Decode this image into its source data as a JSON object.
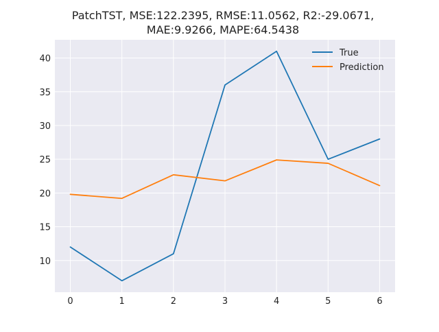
{
  "chart_data": {
    "type": "line",
    "title_lines": [
      "PatchTST, MSE:122.2395, RMSE:11.0562, R2:-29.0671,",
      "MAE:9.9266, MAPE:64.5438"
    ],
    "x": [
      0,
      1,
      2,
      3,
      4,
      5,
      6
    ],
    "xlim": [
      -0.3,
      6.3
    ],
    "ylim": [
      5.3,
      42.7
    ],
    "xticks": [
      0,
      1,
      2,
      3,
      4,
      5,
      6
    ],
    "yticks": [
      10,
      15,
      20,
      25,
      30,
      35,
      40
    ],
    "grid": true,
    "legend_position": "top-right",
    "series": [
      {
        "name": "True",
        "color": "#1f77b4",
        "values": [
          12,
          7,
          11,
          36,
          41,
          25,
          28
        ]
      },
      {
        "name": "Prediction",
        "color": "#ff7f0e",
        "values": [
          19.8,
          19.2,
          22.7,
          21.8,
          24.9,
          24.4,
          21.1
        ]
      }
    ]
  }
}
